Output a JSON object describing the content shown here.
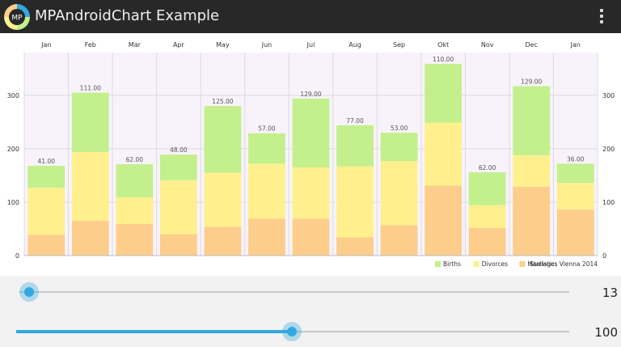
{
  "app": {
    "title": "MPAndroidChart Example",
    "logo_text": "MP",
    "colors": {
      "actionbar": "#282828",
      "accent": "#33a8e0"
    }
  },
  "menu": {
    "icon": "overflow-menu-icon"
  },
  "chart_data": {
    "type": "bar",
    "stacked": true,
    "categories": [
      "Jan",
      "Feb",
      "Mar",
      "Apr",
      "May",
      "Jun",
      "Jul",
      "Aug",
      "Sep",
      "Okt",
      "Nov",
      "Dec",
      "Jan"
    ],
    "series": [
      {
        "name": "Marriages",
        "color": "#fdcd8b",
        "values": [
          39,
          65,
          59,
          40,
          54,
          69,
          69,
          34,
          57,
          131,
          52,
          129,
          86
        ]
      },
      {
        "name": "Divorces",
        "color": "#fff08d",
        "values": [
          88,
          129,
          50,
          101,
          101,
          103,
          96,
          133,
          120,
          118,
          42,
          59,
          50
        ]
      },
      {
        "name": "Births",
        "color": "#c3f08c",
        "values": [
          41,
          111,
          62,
          48,
          125,
          57,
          129,
          77,
          53,
          110,
          62,
          129,
          36
        ]
      }
    ],
    "legend_order": [
      "Births",
      "Divorces",
      "Marriages"
    ],
    "legend_position": "bottom-right",
    "description": "Statistics Vienna 2014",
    "yticks": [
      "0",
      "100",
      "200",
      "300"
    ],
    "ylim": [
      0,
      380
    ],
    "grid": true,
    "x_axis_position": "top",
    "right_axis": true,
    "value_labels": true
  },
  "controls": {
    "seekbar_x": {
      "value": "13",
      "fraction": 0.0
    },
    "seekbar_y": {
      "value": "100",
      "fraction": 0.5
    }
  }
}
